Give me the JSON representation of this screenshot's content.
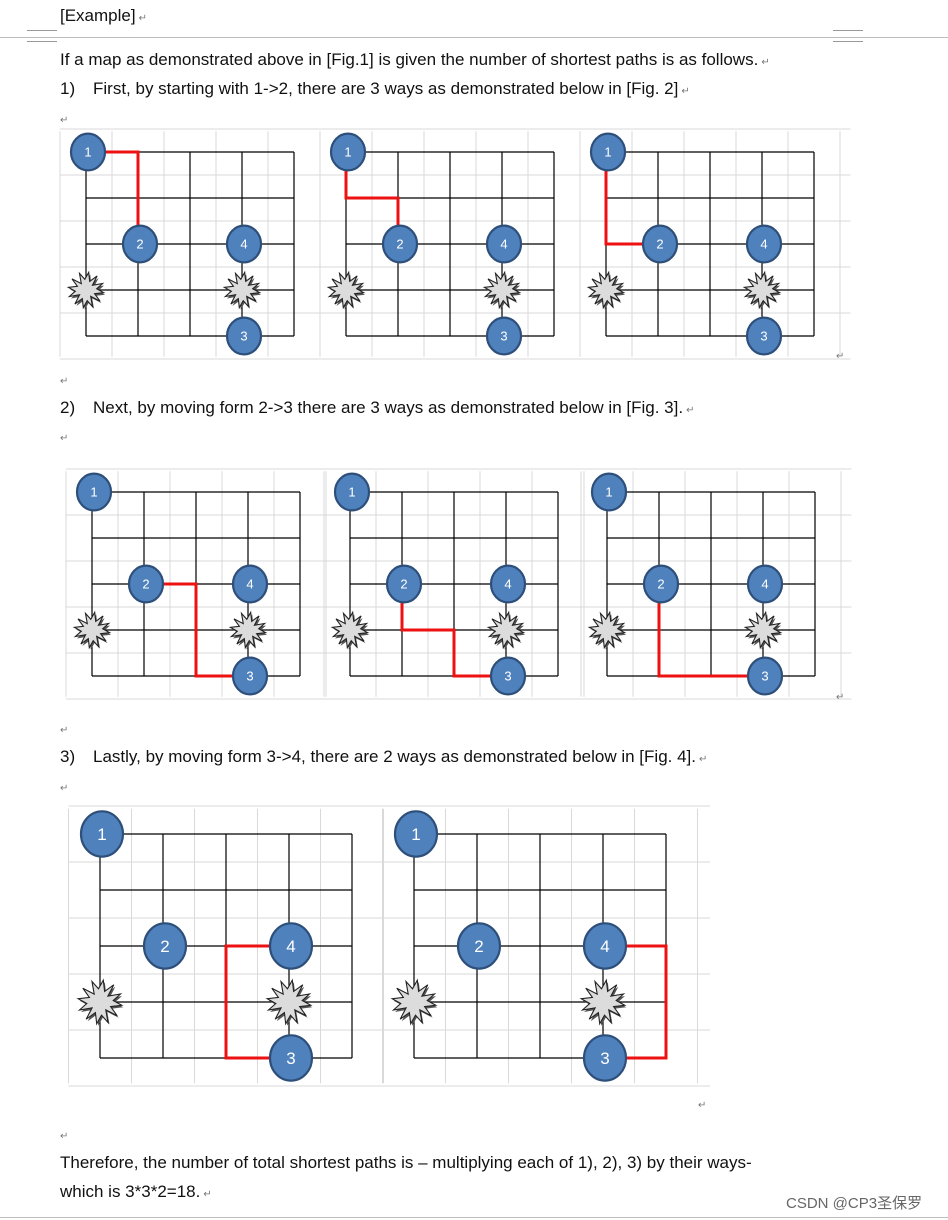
{
  "header": {
    "label": "[Example]"
  },
  "paragraph_mark": "↵",
  "intro": "If a map as demonstrated above in [Fig.1] is given the number of shortest paths is as follows.",
  "steps": [
    {
      "num": "1)",
      "text": "First, by starting with 1->2, there are 3 ways as demonstrated below in [Fig. 2]"
    },
    {
      "num": "2)",
      "text": "Next, by moving form 2->3 there are 3 ways as demonstrated below in [Fig. 3]."
    },
    {
      "num": "3)",
      "text": "Lastly, by moving form 3->4, there are 2 ways as demonstrated below in [Fig. 4]."
    }
  ],
  "conclusion": {
    "line1": "Therefore, the number of total shortest paths is – multiplying each of 1), 2), 3) by their ways-",
    "line2": "which is 3*3*2=18."
  },
  "watermark": "CSDN @CP3圣保罗",
  "colors": {
    "node_fill": "#4f81bd",
    "node_stroke": "#2e4f7a",
    "path": "#ee1111",
    "grid": "#000000",
    "faint_grid": "#d9d9d9"
  },
  "grid_model": {
    "cols": 4,
    "rows": 4,
    "nodes": [
      {
        "label": "1",
        "gx": 0,
        "gy": 0
      },
      {
        "label": "2",
        "gx": 1,
        "gy": 2
      },
      {
        "label": "4",
        "gx": 3,
        "gy": 2
      },
      {
        "label": "3",
        "gx": 3,
        "gy": 4
      }
    ],
    "obstacles": [
      {
        "gx": 0,
        "gy": 3
      },
      {
        "gx": 3,
        "gy": 3
      }
    ]
  },
  "figures": [
    {
      "id": "fig2",
      "panels": [
        [
          [
            0,
            0
          ],
          [
            1,
            0
          ],
          [
            1,
            2
          ]
        ],
        [
          [
            0,
            0
          ],
          [
            0,
            1
          ],
          [
            1,
            1
          ],
          [
            1,
            2
          ]
        ],
        [
          [
            0,
            0
          ],
          [
            0,
            2
          ],
          [
            1,
            2
          ]
        ]
      ]
    },
    {
      "id": "fig3",
      "panels": [
        [
          [
            1,
            2
          ],
          [
            2,
            2
          ],
          [
            2,
            4
          ],
          [
            3,
            4
          ]
        ],
        [
          [
            1,
            2
          ],
          [
            1,
            3
          ],
          [
            2,
            3
          ],
          [
            2,
            4
          ],
          [
            3,
            4
          ]
        ],
        [
          [
            1,
            2
          ],
          [
            1,
            4
          ],
          [
            3,
            4
          ]
        ]
      ]
    },
    {
      "id": "fig4",
      "panels": [
        [
          [
            3,
            2
          ],
          [
            2,
            2
          ],
          [
            2,
            4
          ],
          [
            3,
            4
          ]
        ],
        [
          [
            3,
            2
          ],
          [
            4,
            2
          ],
          [
            4,
            4
          ],
          [
            3,
            4
          ]
        ]
      ]
    }
  ]
}
